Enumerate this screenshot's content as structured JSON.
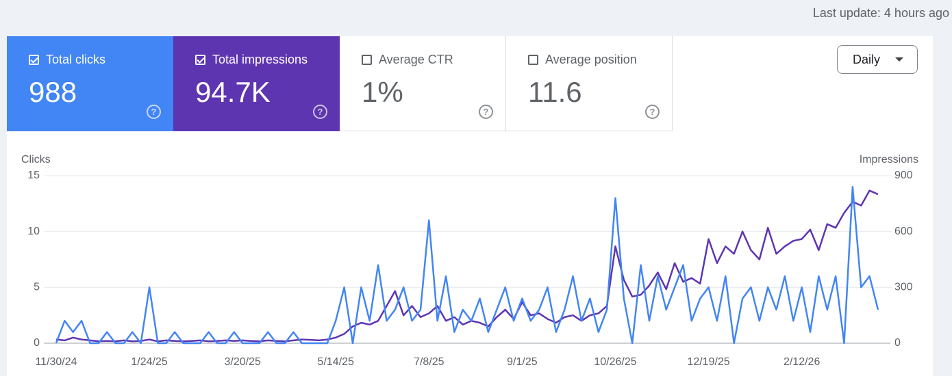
{
  "header": {
    "last_update": "Last update: 4 hours ago"
  },
  "tiles": [
    {
      "label": "Total clicks",
      "value": "988",
      "checked": true,
      "color": "#4285f4"
    },
    {
      "label": "Total impressions",
      "value": "94.7K",
      "checked": true,
      "color": "#5e35b1"
    },
    {
      "label": "Average CTR",
      "value": "1%",
      "checked": false
    },
    {
      "label": "Average position",
      "value": "11.6",
      "checked": false
    }
  ],
  "dropdown": {
    "label": "Daily"
  },
  "chart_data": {
    "type": "line",
    "ylabel": "Clicks",
    "y2label": "Impressions",
    "categories": [
      "11/30/24",
      null,
      null,
      null,
      null,
      null,
      null,
      null,
      null,
      null,
      null,
      "1/24/25",
      null,
      null,
      null,
      null,
      null,
      null,
      null,
      null,
      null,
      null,
      "3/20/25",
      null,
      null,
      null,
      null,
      null,
      null,
      null,
      null,
      null,
      null,
      "5/14/25",
      null,
      null,
      null,
      null,
      null,
      null,
      null,
      null,
      null,
      null,
      "7/8/25",
      null,
      null,
      null,
      null,
      null,
      null,
      null,
      null,
      null,
      null,
      "9/1/25",
      null,
      null,
      null,
      null,
      null,
      null,
      null,
      null,
      null,
      null,
      "10/26/25",
      null,
      null,
      null,
      null,
      null,
      null,
      null,
      null,
      null,
      null,
      "12/19/25",
      null,
      null,
      null,
      null,
      null,
      null,
      null,
      null,
      null,
      null,
      "2/12/26",
      null,
      null,
      null,
      null,
      null,
      null,
      null,
      null,
      null
    ],
    "series": [
      {
        "color": "#5e35b1",
        "axis": "y2",
        "values": [
          20,
          15,
          30,
          20,
          15,
          10,
          12,
          10,
          15,
          10,
          12,
          20,
          10,
          15,
          12,
          10,
          12,
          15,
          10,
          12,
          15,
          12,
          15,
          12,
          10,
          15,
          12,
          10,
          15,
          20,
          18,
          15,
          20,
          30,
          50,
          90,
          110,
          100,
          120,
          200,
          280,
          150,
          200,
          140,
          160,
          200,
          120,
          140,
          100,
          120,
          110,
          90,
          140,
          180,
          130,
          220,
          150,
          160,
          130,
          110,
          140,
          150,
          120,
          150,
          160,
          200,
          520,
          340,
          250,
          260,
          310,
          380,
          290,
          430,
          330,
          350,
          320,
          560,
          430,
          520,
          480,
          600,
          500,
          450,
          620,
          480,
          520,
          550,
          560,
          610,
          500,
          640,
          620,
          700,
          760,
          740,
          820,
          800
        ]
      },
      {
        "color": "#4285f4",
        "values": [
          0,
          2,
          1,
          2,
          0,
          0,
          1,
          0,
          0,
          1,
          0,
          5,
          0,
          0,
          1,
          0,
          0,
          0,
          1,
          0,
          0,
          1,
          0,
          0,
          0,
          1,
          0,
          0,
          1,
          0,
          0,
          0,
          0,
          2,
          5,
          0,
          5,
          2,
          7,
          2,
          3,
          5,
          2,
          3,
          11,
          2,
          6,
          1,
          3,
          2,
          4,
          1,
          3,
          5,
          2,
          4,
          2,
          3,
          5,
          1,
          3,
          6,
          2,
          4,
          1,
          3,
          13,
          4,
          0,
          7,
          2,
          6,
          3,
          5,
          7,
          2,
          4,
          5,
          2,
          6,
          0,
          4,
          5,
          2,
          5,
          3,
          6,
          2,
          5,
          1,
          6,
          3,
          6,
          0,
          14,
          5,
          6,
          3
        ]
      }
    ],
    "ylim": [
      0,
      15
    ],
    "yticks": [
      0,
      5,
      10,
      15
    ],
    "y2lim": [
      0,
      900
    ],
    "y2ticks": [
      0,
      300,
      600,
      900
    ],
    "grid": true
  }
}
